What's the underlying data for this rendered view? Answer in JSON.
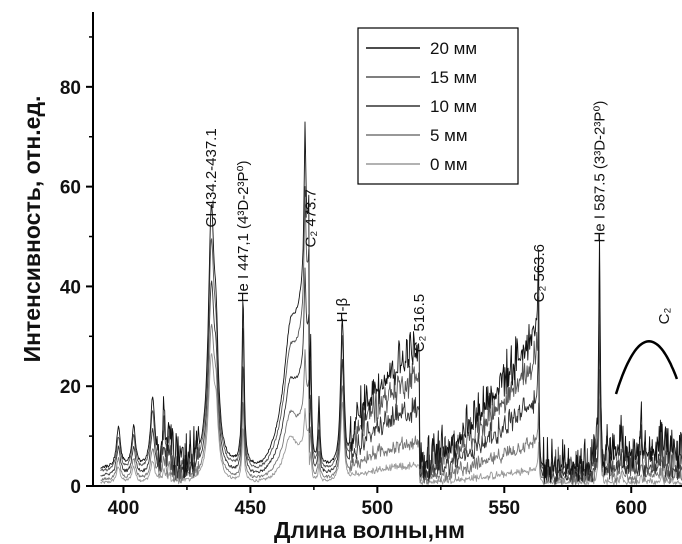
{
  "chart_data": {
    "type": "line",
    "xlabel": "Длина волны,нм",
    "ylabel": "Интенсивность, отн.ед.",
    "xlim": [
      388,
      620
    ],
    "ylim": [
      0,
      95
    ],
    "xticks": [
      400,
      450,
      500,
      550,
      600
    ],
    "yticks": [
      0,
      20,
      40,
      60,
      80
    ],
    "legend_position": "top-right",
    "series": [
      {
        "name": "20 мм",
        "color": "#111111"
      },
      {
        "name": "15 мм",
        "color": "#555555"
      },
      {
        "name": "10 мм",
        "color": "#333333"
      },
      {
        "name": "5 мм",
        "color": "#777777"
      },
      {
        "name": "0 мм",
        "color": "#999999"
      }
    ],
    "annotations": [
      {
        "label": "CI 434.2-437.1",
        "x": 434.5,
        "y": 51
      },
      {
        "label": "He I 447,1 (4³D-2³P⁰)",
        "x": 447.1,
        "y": 36
      },
      {
        "label": "C₂ 473.7",
        "x": 473.7,
        "y": 47
      },
      {
        "label": "H-β",
        "x": 486.1,
        "y": 32
      },
      {
        "label": "C₂ 516.5",
        "x": 516.5,
        "y": 26
      },
      {
        "label": "C₂ 563.6",
        "x": 563.6,
        "y": 36
      },
      {
        "label": "He I 587.5 (3³D-2³P⁰)",
        "x": 587.5,
        "y": 48
      },
      {
        "label": "C₂",
        "x": 607,
        "y": 30
      }
    ],
    "c2_band_arc": {
      "x_start": 594,
      "x_peak": 607,
      "x_end": 618,
      "y_peak": 29
    }
  }
}
